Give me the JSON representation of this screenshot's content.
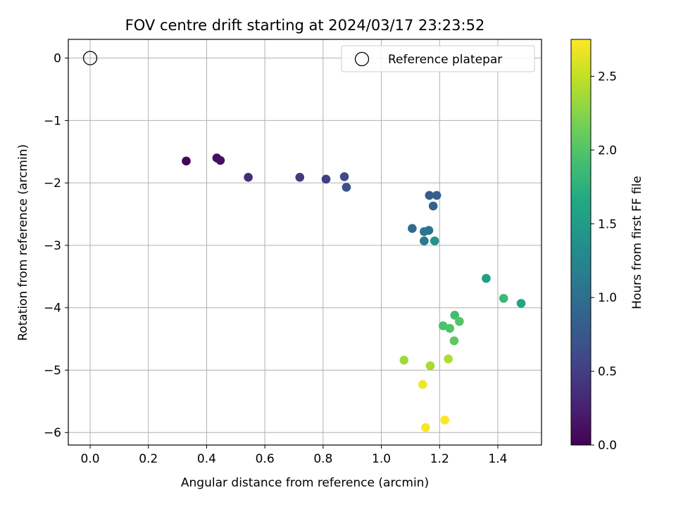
{
  "chart_data": {
    "type": "scatter",
    "title": "FOV centre drift starting at 2024/03/17 23:23:52",
    "xlabel": "Angular distance from reference (arcmin)",
    "ylabel": "Rotation from reference (arcmin)",
    "xlim": [
      -0.075,
      1.55
    ],
    "ylim": [
      -6.2,
      0.3
    ],
    "xticks": [
      "0.0",
      "0.2",
      "0.4",
      "0.6",
      "0.8",
      "1.0",
      "1.2",
      "1.4"
    ],
    "yticks": [
      "0",
      "−1",
      "−2",
      "−3",
      "−4",
      "−5",
      "−6"
    ],
    "grid": true,
    "legend": {
      "position": "top-right",
      "entries": [
        "Reference platepar"
      ]
    },
    "colorbar": {
      "label": "Hours from first FF file",
      "range": [
        0,
        2.75
      ],
      "ticks": [
        "0.0",
        "0.5",
        "1.0",
        "1.5",
        "2.0",
        "2.5"
      ],
      "colormap": "viridis"
    },
    "reference": {
      "x": 0.0,
      "y": 0.0,
      "label": "Reference platepar"
    },
    "series": [
      {
        "points": [
          {
            "x": 0.33,
            "y": -1.65,
            "hours": 0.02
          },
          {
            "x": 0.435,
            "y": -1.6,
            "hours": 0.1
          },
          {
            "x": 0.447,
            "y": -1.64,
            "hours": 0.12
          },
          {
            "x": 0.543,
            "y": -1.91,
            "hours": 0.35
          },
          {
            "x": 0.72,
            "y": -1.91,
            "hours": 0.45
          },
          {
            "x": 0.81,
            "y": -1.94,
            "hours": 0.5
          },
          {
            "x": 0.873,
            "y": -1.9,
            "hours": 0.62
          },
          {
            "x": 0.88,
            "y": -2.07,
            "hours": 0.68
          },
          {
            "x": 1.165,
            "y": -2.2,
            "hours": 0.78
          },
          {
            "x": 1.19,
            "y": -2.2,
            "hours": 0.82
          },
          {
            "x": 1.178,
            "y": -2.37,
            "hours": 0.86
          },
          {
            "x": 1.106,
            "y": -2.73,
            "hours": 0.95
          },
          {
            "x": 1.163,
            "y": -2.76,
            "hours": 1.05
          },
          {
            "x": 1.147,
            "y": -2.78,
            "hours": 1.08
          },
          {
            "x": 1.147,
            "y": -2.93,
            "hours": 1.12
          },
          {
            "x": 1.183,
            "y": -2.93,
            "hours": 1.42
          },
          {
            "x": 1.36,
            "y": -3.53,
            "hours": 1.55
          },
          {
            "x": 1.48,
            "y": -3.93,
            "hours": 1.6
          },
          {
            "x": 1.42,
            "y": -3.85,
            "hours": 1.85
          },
          {
            "x": 1.252,
            "y": -4.12,
            "hours": 1.9
          },
          {
            "x": 1.212,
            "y": -4.29,
            "hours": 1.95
          },
          {
            "x": 1.235,
            "y": -4.33,
            "hours": 1.98
          },
          {
            "x": 1.268,
            "y": -4.22,
            "hours": 2.0
          },
          {
            "x": 1.25,
            "y": -4.53,
            "hours": 2.05
          },
          {
            "x": 1.078,
            "y": -4.84,
            "hours": 2.35
          },
          {
            "x": 1.168,
            "y": -4.93,
            "hours": 2.38
          },
          {
            "x": 1.23,
            "y": -4.82,
            "hours": 2.42
          },
          {
            "x": 1.142,
            "y": -5.23,
            "hours": 2.7
          },
          {
            "x": 1.152,
            "y": -5.92,
            "hours": 2.72
          },
          {
            "x": 1.218,
            "y": -5.8,
            "hours": 2.74
          }
        ]
      }
    ]
  }
}
